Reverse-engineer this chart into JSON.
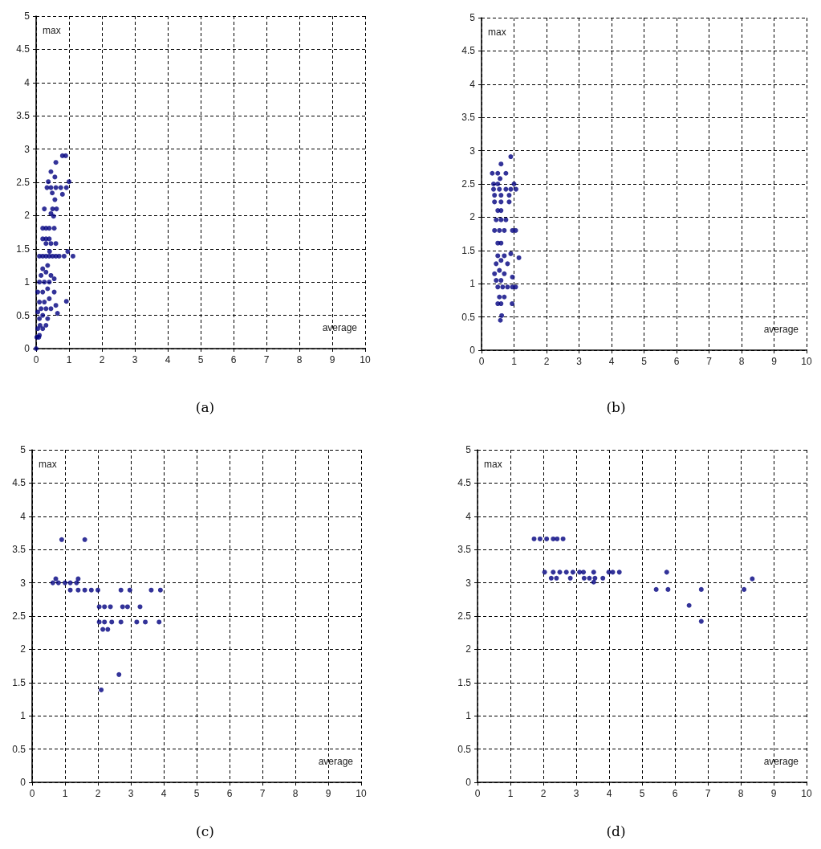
{
  "chart_data": [
    {
      "type": "scatter",
      "title": "(a)",
      "xlabel": "average",
      "ylabel": "max",
      "color": "#000080",
      "marker": "circle",
      "grid": true,
      "xlim": [
        0,
        10
      ],
      "xticks": [
        0,
        1,
        2,
        3,
        4,
        5,
        6,
        7,
        8,
        9,
        10
      ],
      "ylim": [
        0,
        5
      ],
      "yticks": [
        0,
        0.5,
        1,
        1.5,
        2,
        2.5,
        3,
        3.5,
        4,
        4.5,
        5
      ],
      "x": [
        0,
        0.02,
        0.08,
        0.1,
        0.05,
        0.12,
        0.2,
        0.3,
        0.1,
        0.2,
        0.35,
        0.05,
        0.15,
        0.3,
        0.45,
        0.65,
        0.1,
        0.25,
        0.4,
        0.6,
        0.92,
        0.05,
        0.2,
        0.35,
        0.55,
        0.1,
        0.25,
        0.4,
        0.55,
        0.15,
        0.3,
        0.45,
        0.2,
        0.35,
        0.1,
        0.2,
        0.3,
        0.4,
        0.5,
        0.6,
        0.7,
        0.85,
        1.12,
        0.41,
        0.96,
        0.3,
        0.45,
        0.6,
        0.2,
        0.3,
        0.4,
        0.2,
        0.3,
        0.4,
        0.55,
        0.53,
        0.45,
        0.25,
        0.5,
        0.62,
        0.57,
        0.49,
        0.8,
        0.33,
        0.45,
        0.6,
        0.75,
        0.92,
        0.37,
        1.0,
        0.57,
        0.45,
        0.6,
        0.8,
        0.9
      ],
      "values": [
        0,
        0.17,
        0.17,
        0.2,
        0.3,
        0.35,
        0.3,
        0.35,
        0.45,
        0.5,
        0.45,
        0.55,
        0.6,
        0.6,
        0.6,
        0.53,
        0.7,
        0.7,
        0.75,
        0.65,
        0.71,
        0.85,
        0.85,
        0.9,
        0.85,
        1.0,
        1.0,
        1.0,
        1.05,
        1.1,
        1.15,
        1.1,
        1.2,
        1.25,
        1.39,
        1.39,
        1.39,
        1.39,
        1.39,
        1.39,
        1.39,
        1.39,
        1.39,
        1.46,
        1.46,
        1.58,
        1.58,
        1.58,
        1.65,
        1.65,
        1.65,
        1.81,
        1.81,
        1.81,
        1.81,
        1.99,
        2.03,
        2.1,
        2.1,
        2.1,
        2.24,
        2.34,
        2.32,
        2.42,
        2.42,
        2.42,
        2.42,
        2.42,
        2.51,
        2.51,
        2.58,
        2.66,
        2.8,
        2.9,
        2.9
      ]
    },
    {
      "type": "scatter",
      "title": "(b)",
      "xlabel": "average",
      "ylabel": "max",
      "color": "#000080",
      "marker": "circle",
      "grid": true,
      "xlim": [
        0,
        10
      ],
      "xticks": [
        0,
        1,
        2,
        3,
        4,
        5,
        6,
        7,
        8,
        9,
        10
      ],
      "ylim": [
        0,
        5
      ],
      "yticks": [
        0,
        0.5,
        1,
        1.5,
        2,
        2.5,
        3,
        3.5,
        4,
        4.5,
        5
      ],
      "x": [
        0.58,
        0.62,
        0.5,
        0.6,
        0.94,
        0.55,
        0.7,
        0.5,
        0.65,
        0.8,
        0.95,
        1.05,
        0.45,
        0.6,
        0.95,
        0.4,
        0.55,
        0.7,
        0.45,
        0.6,
        0.8,
        0.5,
        0.7,
        0.9,
        1.15,
        0.5,
        0.6,
        0.4,
        0.55,
        0.7,
        0.95,
        1.05,
        0.45,
        0.6,
        0.75,
        0.5,
        0.6,
        0.4,
        0.6,
        0.85,
        0.4,
        0.6,
        0.85,
        0.37,
        0.55,
        0.75,
        0.9,
        1.06,
        0.37,
        0.5,
        1.0,
        0.57,
        0.33,
        0.5,
        0.75,
        0.6,
        0.9
      ],
      "values": [
        0.45,
        0.52,
        0.7,
        0.7,
        0.7,
        0.8,
        0.8,
        0.95,
        0.95,
        0.95,
        0.95,
        0.95,
        1.05,
        1.05,
        1.1,
        1.15,
        1.2,
        1.15,
        1.3,
        1.35,
        1.3,
        1.42,
        1.42,
        1.45,
        1.39,
        1.61,
        1.61,
        1.8,
        1.8,
        1.8,
        1.8,
        1.8,
        1.96,
        1.96,
        1.96,
        2.1,
        2.1,
        2.23,
        2.23,
        2.23,
        2.33,
        2.33,
        2.33,
        2.42,
        2.42,
        2.42,
        2.42,
        2.42,
        2.5,
        2.5,
        2.5,
        2.58,
        2.66,
        2.66,
        2.66,
        2.8,
        2.91
      ]
    },
    {
      "type": "scatter",
      "title": "(c)",
      "xlabel": "average",
      "ylabel": "max",
      "color": "#000080",
      "marker": "circle",
      "grid": true,
      "xlim": [
        0,
        10
      ],
      "xticks": [
        0,
        1,
        2,
        3,
        4,
        5,
        6,
        7,
        8,
        9,
        10
      ],
      "ylim": [
        0,
        5
      ],
      "yticks": [
        0,
        0.5,
        1,
        1.5,
        2,
        2.5,
        3,
        3.5,
        4,
        4.5,
        5
      ],
      "x": [
        0.9,
        1.6,
        0.63,
        0.8,
        1.0,
        1.16,
        0.72,
        1.4,
        1.35,
        1.16,
        1.4,
        1.6,
        1.8,
        2.0,
        2.7,
        2.97,
        3.62,
        3.9,
        2.04,
        2.2,
        2.38,
        2.75,
        2.9,
        3.28,
        2.04,
        2.2,
        2.42,
        2.7,
        3.18,
        3.44,
        3.86,
        2.15,
        2.3,
        2.64,
        2.1
      ],
      "values": [
        3.65,
        3.65,
        3,
        3,
        3,
        3,
        3.06,
        3.06,
        3,
        2.89,
        2.89,
        2.89,
        2.89,
        2.89,
        2.89,
        2.89,
        2.89,
        2.89,
        2.64,
        2.64,
        2.64,
        2.64,
        2.64,
        2.64,
        2.41,
        2.41,
        2.41,
        2.41,
        2.41,
        2.41,
        2.41,
        2.3,
        2.3,
        1.62,
        1.39
      ]
    },
    {
      "type": "scatter",
      "title": "(d)",
      "xlabel": "average",
      "ylabel": "max",
      "color": "#000080",
      "marker": "circle",
      "grid": true,
      "xlim": [
        0,
        10
      ],
      "xticks": [
        0,
        1,
        2,
        3,
        4,
        5,
        6,
        7,
        8,
        9,
        10
      ],
      "ylim": [
        0,
        5
      ],
      "yticks": [
        0,
        0.5,
        1,
        1.5,
        2,
        2.5,
        3,
        3.5,
        4,
        4.5,
        5
      ],
      "x": [
        1.72,
        1.9,
        2.1,
        2.3,
        2.42,
        2.6,
        2.04,
        2.3,
        2.5,
        2.7,
        2.9,
        3.1,
        3.22,
        3.53,
        3.99,
        4.11,
        4.31,
        5.75,
        2.24,
        2.4,
        2.82,
        3.24,
        3.4,
        3.57,
        3.81,
        3.53,
        5.43,
        5.79,
        6.8,
        8.1,
        6.43,
        6.8,
        8.35
      ],
      "values": [
        3.66,
        3.66,
        3.66,
        3.66,
        3.66,
        3.66,
        3.16,
        3.16,
        3.16,
        3.16,
        3.16,
        3.16,
        3.16,
        3.16,
        3.16,
        3.16,
        3.16,
        3.16,
        3.07,
        3.07,
        3.07,
        3.07,
        3.07,
        3.07,
        3.07,
        3.01,
        2.9,
        2.9,
        2.9,
        2.9,
        2.66,
        2.42,
        3.06
      ]
    }
  ]
}
